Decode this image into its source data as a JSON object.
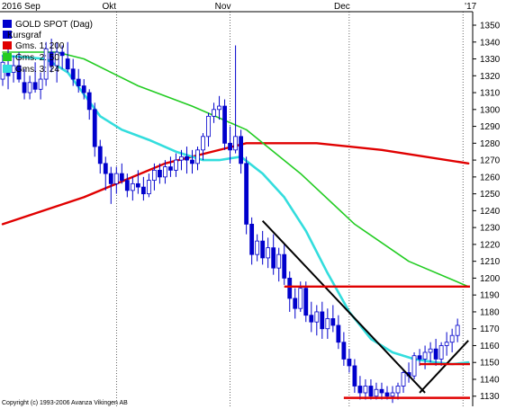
{
  "chart_data": {
    "type": "candlestick",
    "title": "GOLD SPOT (Dag)",
    "copyright": "Copyright (c) 1993-2006 Avanza Vikingen AB",
    "colors": {
      "background": "#ffffff",
      "candle": "#0000cc",
      "ma200": "#e00000",
      "ma50": "#22cc22",
      "ma24": "#33dddd",
      "trendline": "#000000",
      "support": "#e00000",
      "grid": "#000000"
    },
    "legend": [
      {
        "label": "Kursgraf",
        "color": "#0000cc"
      },
      {
        "label": "Gms. 1: 200",
        "color": "#e00000"
      },
      {
        "label": "Gms. 2: 50",
        "color": "#22cc22"
      },
      {
        "label": "Gms. 3: 24",
        "color": "#33dddd"
      }
    ],
    "month_labels": [
      {
        "label": "2016 Sep",
        "x": 0
      },
      {
        "label": "Okt",
        "x": 21
      },
      {
        "label": "Nov",
        "x": 42
      },
      {
        "label": "Dec",
        "x": 64
      },
      {
        "label": "'17",
        "x": 85
      }
    ],
    "month_ticks": [
      21,
      42,
      64,
      85
    ],
    "y_ticks": [
      1130,
      1140,
      1150,
      1160,
      1170,
      1180,
      1190,
      1200,
      1210,
      1220,
      1230,
      1240,
      1250,
      1260,
      1270,
      1280,
      1290,
      1300,
      1310,
      1320,
      1330,
      1340,
      1350
    ],
    "ylim": [
      1124,
      1358
    ],
    "xlim": [
      -0.5,
      86.8
    ],
    "ohlc": [
      [
        0,
        1318,
        1332,
        1314,
        1328
      ],
      [
        1,
        1326,
        1338,
        1312,
        1320
      ],
      [
        2,
        1322,
        1332,
        1316,
        1326
      ],
      [
        3,
        1326,
        1334,
        1316,
        1318
      ],
      [
        4,
        1316,
        1324,
        1306,
        1310
      ],
      [
        5,
        1310,
        1320,
        1306,
        1316
      ],
      [
        6,
        1316,
        1328,
        1310,
        1312
      ],
      [
        7,
        1312,
        1322,
        1306,
        1318
      ],
      [
        8,
        1318,
        1340,
        1314,
        1336
      ],
      [
        9,
        1334,
        1342,
        1322,
        1326
      ],
      [
        10,
        1326,
        1340,
        1316,
        1334
      ],
      [
        11,
        1334,
        1338,
        1324,
        1332
      ],
      [
        12,
        1330,
        1340,
        1322,
        1324
      ],
      [
        13,
        1324,
        1330,
        1314,
        1318
      ],
      [
        14,
        1318,
        1324,
        1310,
        1314
      ],
      [
        15,
        1314,
        1318,
        1306,
        1310
      ],
      [
        16,
        1310,
        1312,
        1294,
        1300
      ],
      [
        17,
        1300,
        1304,
        1272,
        1278
      ],
      [
        18,
        1278,
        1282,
        1262,
        1268
      ],
      [
        19,
        1268,
        1272,
        1252,
        1262
      ],
      [
        20,
        1262,
        1266,
        1244,
        1256
      ],
      [
        21,
        1256,
        1266,
        1250,
        1262
      ],
      [
        22,
        1262,
        1268,
        1256,
        1258
      ],
      [
        23,
        1258,
        1262,
        1248,
        1252
      ],
      [
        24,
        1252,
        1260,
        1246,
        1256
      ],
      [
        25,
        1256,
        1264,
        1250,
        1254
      ],
      [
        26,
        1254,
        1260,
        1246,
        1250
      ],
      [
        27,
        1250,
        1262,
        1248,
        1258
      ],
      [
        28,
        1258,
        1268,
        1252,
        1264
      ],
      [
        29,
        1264,
        1268,
        1256,
        1260
      ],
      [
        30,
        1260,
        1270,
        1256,
        1266
      ],
      [
        31,
        1266,
        1272,
        1260,
        1264
      ],
      [
        32,
        1264,
        1274,
        1260,
        1270
      ],
      [
        33,
        1270,
        1276,
        1264,
        1272
      ],
      [
        34,
        1272,
        1278,
        1262,
        1270
      ],
      [
        35,
        1270,
        1276,
        1262,
        1268
      ],
      [
        36,
        1268,
        1278,
        1264,
        1276
      ],
      [
        37,
        1276,
        1286,
        1270,
        1284
      ],
      [
        38,
        1284,
        1298,
        1278,
        1296
      ],
      [
        39,
        1296,
        1304,
        1292,
        1300
      ],
      [
        40,
        1300,
        1308,
        1294,
        1302
      ],
      [
        41,
        1302,
        1306,
        1276,
        1280
      ],
      [
        42,
        1280,
        1290,
        1268,
        1276
      ],
      [
        43,
        1276,
        1338,
        1274,
        1284
      ],
      [
        44,
        1284,
        1288,
        1262,
        1268
      ],
      [
        45,
        1268,
        1272,
        1226,
        1232
      ],
      [
        46,
        1232,
        1236,
        1208,
        1214
      ],
      [
        47,
        1214,
        1226,
        1210,
        1222
      ],
      [
        48,
        1222,
        1228,
        1208,
        1212
      ],
      [
        49,
        1212,
        1224,
        1206,
        1218
      ],
      [
        50,
        1218,
        1226,
        1202,
        1206
      ],
      [
        51,
        1206,
        1218,
        1198,
        1214
      ],
      [
        52,
        1214,
        1220,
        1196,
        1200
      ],
      [
        53,
        1200,
        1204,
        1180,
        1188
      ],
      [
        54,
        1188,
        1194,
        1176,
        1182
      ],
      [
        55,
        1182,
        1198,
        1180,
        1194
      ],
      [
        56,
        1194,
        1198,
        1174,
        1178
      ],
      [
        57,
        1178,
        1186,
        1168,
        1174
      ],
      [
        58,
        1174,
        1184,
        1166,
        1180
      ],
      [
        59,
        1180,
        1186,
        1164,
        1170
      ],
      [
        60,
        1170,
        1182,
        1164,
        1176
      ],
      [
        61,
        1176,
        1184,
        1168,
        1172
      ],
      [
        62,
        1172,
        1178,
        1158,
        1162
      ],
      [
        63,
        1162,
        1168,
        1148,
        1152
      ],
      [
        64,
        1152,
        1158,
        1144,
        1148
      ],
      [
        65,
        1148,
        1152,
        1132,
        1136
      ],
      [
        66,
        1136,
        1142,
        1128,
        1132
      ],
      [
        67,
        1132,
        1140,
        1128,
        1136
      ],
      [
        68,
        1136,
        1140,
        1128,
        1130
      ],
      [
        69,
        1130,
        1138,
        1128,
        1134
      ],
      [
        70,
        1134,
        1138,
        1128,
        1132
      ],
      [
        71,
        1132,
        1136,
        1128,
        1130
      ],
      [
        72,
        1130,
        1136,
        1126,
        1132
      ],
      [
        73,
        1132,
        1138,
        1128,
        1136
      ],
      [
        74,
        1136,
        1146,
        1132,
        1144
      ],
      [
        75,
        1144,
        1150,
        1138,
        1142
      ],
      [
        76,
        1142,
        1156,
        1140,
        1154
      ],
      [
        77,
        1154,
        1158,
        1148,
        1152
      ],
      [
        78,
        1152,
        1160,
        1146,
        1156
      ],
      [
        79,
        1156,
        1162,
        1150,
        1158
      ],
      [
        80,
        1158,
        1164,
        1148,
        1152
      ],
      [
        81,
        1152,
        1162,
        1148,
        1160
      ],
      [
        82,
        1160,
        1168,
        1154,
        1162
      ],
      [
        83,
        1162,
        1170,
        1156,
        1166
      ],
      [
        84,
        1166,
        1176,
        1162,
        1172
      ]
    ],
    "ma200": [
      [
        0,
        1232
      ],
      [
        15,
        1248
      ],
      [
        30,
        1268
      ],
      [
        45,
        1280
      ],
      [
        58,
        1280
      ],
      [
        70,
        1276
      ],
      [
        86,
        1268
      ]
    ],
    "ma50": [
      [
        0,
        1334
      ],
      [
        10,
        1334
      ],
      [
        15,
        1330
      ],
      [
        25,
        1314
      ],
      [
        35,
        1302
      ],
      [
        45,
        1288
      ],
      [
        55,
        1262
      ],
      [
        65,
        1232
      ],
      [
        75,
        1210
      ],
      [
        86,
        1195
      ]
    ],
    "ma24": [
      [
        0,
        1332
      ],
      [
        8,
        1330
      ],
      [
        12,
        1322
      ],
      [
        18,
        1296
      ],
      [
        22,
        1288
      ],
      [
        27,
        1282
      ],
      [
        32,
        1275
      ],
      [
        37,
        1270
      ],
      [
        40,
        1270
      ],
      [
        44,
        1272
      ],
      [
        48,
        1262
      ],
      [
        52,
        1248
      ],
      [
        56,
        1228
      ],
      [
        60,
        1203
      ],
      [
        64,
        1180
      ],
      [
        68,
        1164
      ],
      [
        72,
        1156
      ],
      [
        76,
        1152
      ],
      [
        80,
        1150
      ],
      [
        83,
        1149
      ],
      [
        86,
        1150
      ]
    ],
    "trendlines": [
      [
        [
          48,
          1234
        ],
        [
          78,
          1132
        ]
      ],
      [
        [
          77,
          1132
        ],
        [
          86,
          1163
        ]
      ]
    ],
    "support_lines": [
      {
        "x1": 52,
        "x2": 86.3,
        "y": 1195
      },
      {
        "x1": 77,
        "x2": 86.3,
        "y": 1149
      },
      {
        "x1": 63,
        "x2": 86.3,
        "y": 1129
      }
    ]
  }
}
